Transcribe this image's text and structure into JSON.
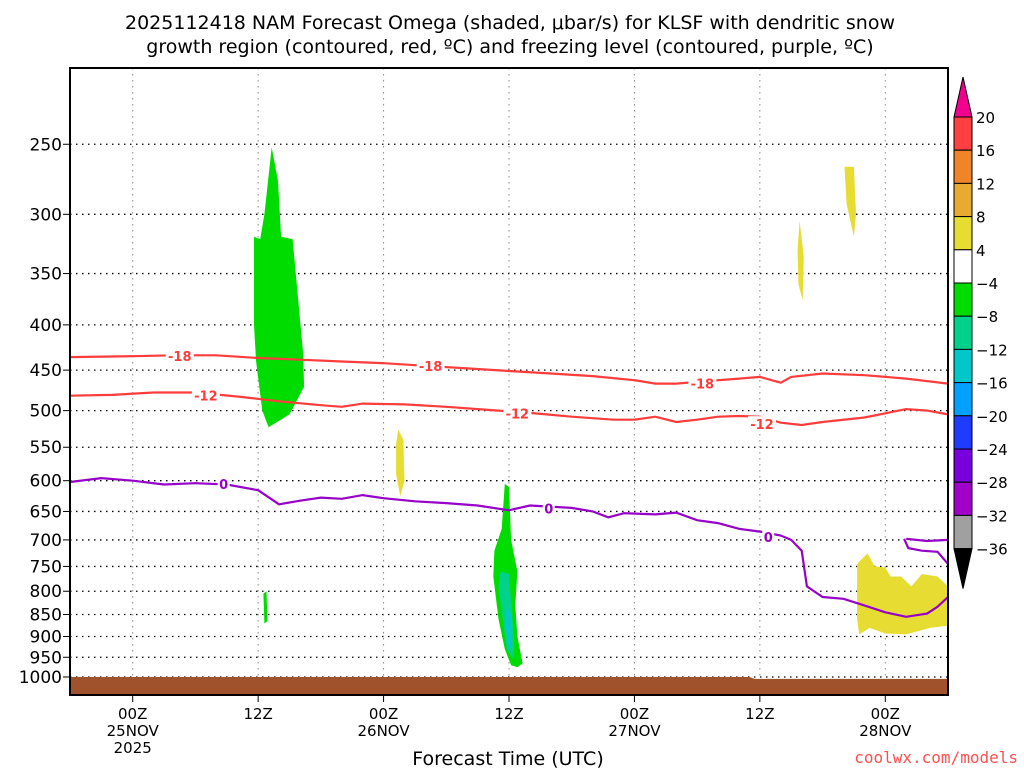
{
  "chart_data": {
    "type": "heatmap",
    "title_lines": [
      "2025112418 NAM Forecast Omega (shaded, μbar/s) for KLSF with dendritic snow",
      "growth region (contoured, red, ºC) and freezing level (contoured, purple, ºC)"
    ],
    "xlabel": "Forecast Time (UTC)",
    "xlim_hours_from_2025112418": [
      0,
      84
    ],
    "ylim_hPa": [
      205,
      1048
    ],
    "yscale": "log",
    "y_ticks": [
      250,
      300,
      350,
      400,
      450,
      500,
      550,
      600,
      650,
      700,
      750,
      800,
      850,
      900,
      950,
      1000
    ],
    "x_ticks": [
      {
        "h": 6,
        "lines": [
          "00Z",
          "25NOV",
          "2025"
        ]
      },
      {
        "h": 18,
        "lines": [
          "12Z"
        ]
      },
      {
        "h": 30,
        "lines": [
          "00Z",
          "26NOV"
        ]
      },
      {
        "h": 42,
        "lines": [
          "12Z"
        ]
      },
      {
        "h": 54,
        "lines": [
          "00Z",
          "27NOV"
        ]
      },
      {
        "h": 66,
        "lines": [
          "12Z"
        ]
      },
      {
        "h": 78,
        "lines": [
          "00Z",
          "28NOV"
        ]
      }
    ],
    "colorbar": {
      "labels": [
        "20",
        "16",
        "12",
        "8",
        "4",
        "−4",
        "−8",
        "−12",
        "−16",
        "−20",
        "−24",
        "−28",
        "−32",
        "−36"
      ],
      "colors": [
        "#ff4040",
        "#f08428",
        "#e8aa30",
        "#e6dc32",
        "#ffffff",
        "#00dc00",
        "#00d28c",
        "#00c8c8",
        "#00a0ff",
        "#1e3cff",
        "#7800dc",
        "#a000c8",
        "#a0a0a0"
      ],
      "top_color": "#f0008c",
      "bottom_color": "#000000"
    },
    "shaded": [
      {
        "value_color": "#00dc00",
        "pts": [
          [
            17.6,
            318
          ],
          [
            18.2,
            320
          ],
          [
            18.6,
            300
          ],
          [
            19.3,
            252
          ],
          [
            19.9,
            275
          ],
          [
            20.2,
            318
          ],
          [
            21.3,
            320
          ],
          [
            22.3,
            430
          ],
          [
            22.4,
            470
          ],
          [
            21,
            505
          ],
          [
            19.8,
            515
          ],
          [
            19,
            522
          ],
          [
            18.4,
            500
          ],
          [
            17.8,
            440
          ],
          [
            17.6,
            400
          ]
        ]
      },
      {
        "value_color": "#00dc00",
        "pts": [
          [
            18.5,
            805
          ],
          [
            18.8,
            800
          ],
          [
            18.9,
            865
          ],
          [
            18.6,
            870
          ]
        ]
      },
      {
        "value_color": "#e6dc32",
        "pts": [
          [
            31.4,
            525
          ],
          [
            31.9,
            540
          ],
          [
            32.0,
            600
          ],
          [
            31.6,
            625
          ],
          [
            31.2,
            590
          ],
          [
            31.2,
            545
          ]
        ]
      },
      {
        "value_color": "#e6dc32",
        "pts": [
          [
            69.8,
            305
          ],
          [
            70.2,
            335
          ],
          [
            70.1,
            375
          ],
          [
            69.7,
            360
          ],
          [
            69.6,
            330
          ]
        ]
      },
      {
        "value_color": "#e6dc32",
        "pts": [
          [
            74.1,
            265
          ],
          [
            75.0,
            265
          ],
          [
            75.2,
            300
          ],
          [
            75.0,
            318
          ],
          [
            74.3,
            292
          ]
        ]
      },
      {
        "value_color": "#e6dc32",
        "pts": [
          [
            75.3,
            745
          ],
          [
            76.3,
            725
          ],
          [
            77,
            750
          ],
          [
            78,
            752
          ],
          [
            78.5,
            770
          ],
          [
            79.5,
            770
          ],
          [
            80.5,
            790
          ],
          [
            81.5,
            765
          ],
          [
            83,
            770
          ],
          [
            84,
            790
          ],
          [
            84,
            875
          ],
          [
            82.3,
            880
          ],
          [
            80,
            895
          ],
          [
            78,
            893
          ],
          [
            76.5,
            880
          ],
          [
            75.5,
            895
          ],
          [
            75.3,
            860
          ]
        ]
      },
      {
        "value_color": "#00dc00",
        "pts": [
          [
            41.6,
            605
          ],
          [
            42.0,
            610
          ],
          [
            42.2,
            700
          ],
          [
            42.8,
            760
          ],
          [
            42.6,
            830
          ],
          [
            42.8,
            900
          ],
          [
            43.3,
            965
          ],
          [
            42.8,
            975
          ],
          [
            42.2,
            970
          ],
          [
            41.6,
            930
          ],
          [
            41.0,
            860
          ],
          [
            40.5,
            770
          ],
          [
            40.6,
            720
          ],
          [
            41.3,
            680
          ]
        ]
      },
      {
        "value_color": "#00d28c",
        "pts": [
          [
            41.2,
            760
          ],
          [
            42.0,
            765
          ],
          [
            42.3,
            850
          ],
          [
            42.5,
            920
          ],
          [
            42.4,
            955
          ],
          [
            41.8,
            930
          ],
          [
            41.4,
            860
          ],
          [
            41.0,
            790
          ]
        ]
      },
      {
        "value_color": "#00c8c8",
        "pts": [
          [
            41.8,
            830
          ],
          [
            42.2,
            850
          ],
          [
            42.3,
            920
          ],
          [
            42.0,
            935
          ],
          [
            41.7,
            880
          ]
        ]
      }
    ],
    "terrain": {
      "color": "#a0522d",
      "pts": [
        [
          0,
          1000
        ],
        [
          65,
          1000
        ],
        [
          65.5,
          1005
        ],
        [
          84,
          1005
        ]
      ]
    },
    "contours": [
      {
        "name": "-18",
        "color": "#ff3c3c",
        "pts": [
          [
            0,
            435
          ],
          [
            6,
            434
          ],
          [
            10,
            433
          ],
          [
            14,
            433
          ],
          [
            18,
            436
          ],
          [
            22,
            438
          ],
          [
            26,
            440
          ],
          [
            30,
            442
          ],
          [
            34,
            445
          ],
          [
            38,
            448
          ],
          [
            42,
            451
          ],
          [
            46,
            454
          ],
          [
            50,
            457
          ],
          [
            54,
            462
          ],
          [
            56,
            466
          ],
          [
            58,
            466
          ],
          [
            60,
            464
          ],
          [
            64,
            460
          ],
          [
            66,
            458
          ],
          [
            68,
            465
          ],
          [
            69,
            458
          ],
          [
            72,
            454
          ],
          [
            76,
            456
          ],
          [
            80,
            460
          ],
          [
            84,
            466
          ]
        ],
        "labels": [
          {
            "h": 10.5,
            "p": 434,
            "text": "-18"
          },
          {
            "h": 34.5,
            "p": 445,
            "text": "-18"
          },
          {
            "h": 60.5,
            "p": 466,
            "text": "-18"
          }
        ]
      },
      {
        "name": "-12",
        "color": "#ff3c3c",
        "pts": [
          [
            0,
            481
          ],
          [
            4,
            480
          ],
          [
            8,
            477
          ],
          [
            12,
            477
          ],
          [
            16,
            482
          ],
          [
            20,
            488
          ],
          [
            24,
            493
          ],
          [
            26,
            495
          ],
          [
            28,
            491
          ],
          [
            32,
            492
          ],
          [
            36,
            495
          ],
          [
            40,
            499
          ],
          [
            44,
            503
          ],
          [
            48,
            508
          ],
          [
            52,
            512
          ],
          [
            54,
            512
          ],
          [
            56,
            508
          ],
          [
            58,
            515
          ],
          [
            60,
            512
          ],
          [
            62,
            508
          ],
          [
            64,
            507
          ],
          [
            66,
            508
          ],
          [
            68,
            516
          ],
          [
            70,
            519
          ],
          [
            72,
            515
          ],
          [
            76,
            509
          ],
          [
            80,
            498
          ],
          [
            82,
            500
          ],
          [
            84,
            505
          ]
        ],
        "labels": [
          {
            "h": 13,
            "p": 481,
            "text": "-12"
          },
          {
            "h": 42.8,
            "p": 504,
            "text": "-12"
          },
          {
            "h": 66.2,
            "p": 518,
            "text": "-12"
          }
        ]
      },
      {
        "name": "0",
        "color": "#9600c8",
        "pts": [
          [
            0,
            602
          ],
          [
            3,
            596
          ],
          [
            6,
            600
          ],
          [
            9,
            606
          ],
          [
            12,
            604
          ],
          [
            15,
            606
          ],
          [
            18,
            615
          ],
          [
            20,
            638
          ],
          [
            22,
            632
          ],
          [
            24,
            627
          ],
          [
            26,
            629
          ],
          [
            28,
            623
          ],
          [
            30,
            628
          ],
          [
            33,
            633
          ],
          [
            36,
            636
          ],
          [
            39,
            640
          ],
          [
            42,
            648
          ],
          [
            44,
            640
          ],
          [
            48,
            644
          ],
          [
            50,
            650
          ],
          [
            51.5,
            660
          ],
          [
            53,
            653
          ],
          [
            56,
            655
          ],
          [
            58,
            652
          ],
          [
            60,
            665
          ],
          [
            62,
            670
          ],
          [
            64,
            680
          ],
          [
            66,
            685
          ],
          [
            68,
            692
          ],
          [
            69,
            700
          ],
          [
            70,
            720
          ],
          [
            70.5,
            790
          ],
          [
            72,
            812
          ],
          [
            74,
            816
          ],
          [
            76,
            830
          ],
          [
            78,
            845
          ],
          [
            80,
            855
          ],
          [
            82,
            848
          ],
          [
            83,
            833
          ],
          [
            84,
            812
          ]
        ],
        "labels": [
          {
            "h": 14.7,
            "p": 605,
            "text": "0"
          },
          {
            "h": 45.8,
            "p": 645,
            "text": "0"
          },
          {
            "h": 66.8,
            "p": 695,
            "text": "0"
          }
        ]
      },
      {
        "name": "0b",
        "color": "#9600c8",
        "pts": [
          [
            79.8,
            698
          ],
          [
            80.2,
            715
          ],
          [
            81.5,
            720
          ],
          [
            83,
            722
          ],
          [
            84,
            745
          ],
          [
            84.2,
            790
          ]
        ],
        "labels": []
      },
      {
        "name": "0c",
        "color": "#9600c8",
        "pts": [
          [
            80,
            698
          ],
          [
            82,
            702
          ],
          [
            84,
            700
          ]
        ],
        "labels": []
      }
    ]
  },
  "credit": "coolwx.com/models"
}
